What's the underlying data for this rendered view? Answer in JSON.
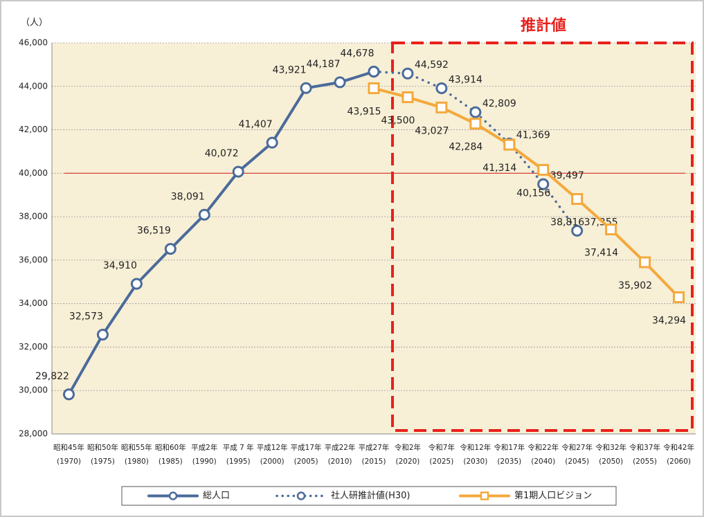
{
  "chart_data": {
    "type": "line",
    "y_unit": "（人）",
    "annotation": "推計値",
    "categories": [
      "昭和45年",
      "昭和50年",
      "昭和55年",
      "昭和60年",
      "平成2年",
      "平成 7 年",
      "平成12年",
      "平成17年",
      "平成22年",
      "平成27年",
      "令和2年",
      "令和7年",
      "令和12年",
      "令和17年",
      "令和22年",
      "令和27年",
      "令和32年",
      "令和37年",
      "令和42年"
    ],
    "category_years": [
      "(1970)",
      "(1975)",
      "(1980)",
      "(1985)",
      "(1990)",
      "(1995)",
      "(2000)",
      "(2005)",
      "(2010)",
      "(2015)",
      "(2020)",
      "(2025)",
      "(2030)",
      "(2035)",
      "(2040)",
      "(2045)",
      "(2050)",
      "(2055)",
      "(2060)"
    ],
    "series": [
      {
        "name": "総人口",
        "color": "#4a6b9a",
        "style": "solid",
        "marker": "circle",
        "values": [
          29822,
          32573,
          34910,
          36519,
          38091,
          40072,
          41407,
          43921,
          44187,
          44678,
          null,
          null,
          null,
          null,
          null,
          null,
          null,
          null,
          null
        ],
        "value_labels": [
          "29,822",
          "32,573",
          "34,910",
          "36,519",
          "38,091",
          "40,072",
          "41,407",
          "43,921",
          "44,187",
          "44,678",
          null,
          null,
          null,
          null,
          null,
          null,
          null,
          null,
          null
        ]
      },
      {
        "name": "社人研推計値(H30)",
        "color": "#4a6b9a",
        "style": "dotted",
        "marker": "circle",
        "values": [
          null,
          null,
          null,
          null,
          null,
          null,
          null,
          null,
          null,
          44678,
          44592,
          43914,
          42809,
          41369,
          39497,
          37355,
          null,
          null,
          null
        ],
        "value_labels": [
          null,
          null,
          null,
          null,
          null,
          null,
          null,
          null,
          null,
          null,
          "44,592",
          "43,914",
          "42,809",
          "41,369",
          "39,497",
          "37,355",
          null,
          null,
          null
        ]
      },
      {
        "name": "第1期人口ビジョン",
        "color": "#f4a93c",
        "style": "solid",
        "marker": "square",
        "values": [
          null,
          null,
          null,
          null,
          null,
          null,
          null,
          null,
          null,
          43915,
          43500,
          43027,
          42284,
          41314,
          40156,
          38816,
          37414,
          35902,
          34294
        ],
        "value_labels": [
          null,
          null,
          null,
          null,
          null,
          null,
          null,
          null,
          null,
          "43,915",
          "43,500",
          "43,027",
          "42,284",
          "41,314",
          "40,156",
          "38,816",
          "37,414",
          "35,902",
          "34,294"
        ]
      }
    ],
    "ylim": [
      28000,
      46000
    ],
    "yticks": [
      {
        "value": 28000,
        "label": "28,000"
      },
      {
        "value": 30000,
        "label": "30,000"
      },
      {
        "value": 32000,
        "label": "32,000"
      },
      {
        "value": 34000,
        "label": "34,000"
      },
      {
        "value": 36000,
        "label": "36,000"
      },
      {
        "value": 38000,
        "label": "38,000"
      },
      {
        "value": 40000,
        "label": "40,000"
      },
      {
        "value": 42000,
        "label": "42,000"
      },
      {
        "value": 44000,
        "label": "44,000"
      },
      {
        "value": 46000,
        "label": "46,000"
      }
    ],
    "reference_line": {
      "value": 40000,
      "color": "#d9312b"
    },
    "grid": true,
    "plot_background": "#f7efd6",
    "legend": "bottom"
  }
}
